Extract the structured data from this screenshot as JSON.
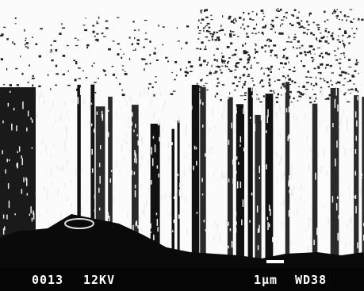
{
  "footer": {
    "photo_number": "0013",
    "voltage": "12KV",
    "scale": "1µm",
    "working_distance": "WD38"
  }
}
